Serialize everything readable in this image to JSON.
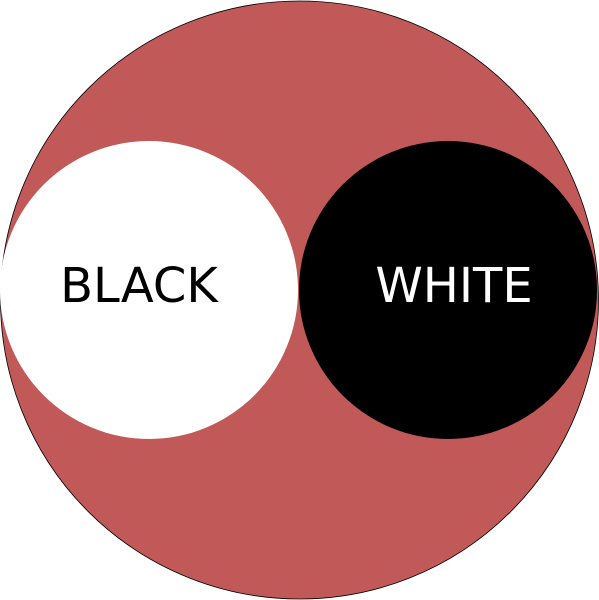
{
  "colors": {
    "big_circle": "#c25959",
    "big_circle_stroke": "#000000",
    "left_circle": "#ffffff",
    "right_circle": "#000000",
    "left_text": "#000000",
    "right_text": "#ffffff"
  },
  "labels": {
    "left": "BLACK",
    "right": "WHITE"
  }
}
